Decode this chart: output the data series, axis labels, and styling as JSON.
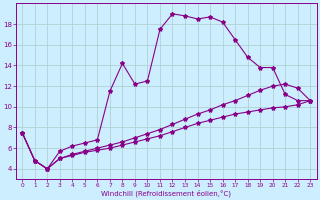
{
  "xlabel": "Windchill (Refroidissement éolien,°C)",
  "background_color": "#cceeff",
  "grid_color": "#aacccc",
  "line_color": "#880088",
  "xlim": [
    -0.5,
    23.5
  ],
  "ylim": [
    3.0,
    20.0
  ],
  "xticks": [
    0,
    1,
    2,
    3,
    4,
    5,
    6,
    7,
    8,
    9,
    10,
    11,
    12,
    13,
    14,
    15,
    16,
    17,
    18,
    19,
    20,
    21,
    22,
    23
  ],
  "yticks": [
    4,
    6,
    8,
    10,
    12,
    14,
    16,
    18
  ],
  "series": [
    {
      "x": [
        0,
        1,
        2,
        3,
        4,
        5,
        6,
        7,
        8,
        9,
        10,
        11,
        12,
        13,
        14,
        15,
        16,
        17,
        18,
        19,
        20,
        21,
        22,
        23
      ],
      "y": [
        7.5,
        4.8,
        4.0,
        5.7,
        6.2,
        6.5,
        6.8,
        11.5,
        14.2,
        12.2,
        12.5,
        17.5,
        19.0,
        18.8,
        18.5,
        18.7,
        18.2,
        16.5,
        14.8,
        13.8,
        13.8,
        11.2,
        10.6,
        10.6
      ]
    },
    {
      "x": [
        0,
        1,
        2,
        3,
        4,
        5,
        6,
        7,
        8,
        9,
        10,
        11,
        12,
        13,
        14,
        15,
        16,
        17,
        18,
        19,
        20,
        21,
        22,
        23
      ],
      "y": [
        7.5,
        4.8,
        4.0,
        5.0,
        5.3,
        5.6,
        5.8,
        6.0,
        6.3,
        6.6,
        6.9,
        7.2,
        7.6,
        8.0,
        8.4,
        8.7,
        9.0,
        9.3,
        9.5,
        9.7,
        9.9,
        10.0,
        10.2,
        10.6
      ]
    },
    {
      "x": [
        0,
        1,
        2,
        3,
        4,
        5,
        6,
        7,
        8,
        9,
        10,
        11,
        12,
        13,
        14,
        15,
        16,
        17,
        18,
        19,
        20,
        21,
        22,
        23
      ],
      "y": [
        7.5,
        4.8,
        4.0,
        5.0,
        5.4,
        5.7,
        6.0,
        6.3,
        6.6,
        7.0,
        7.4,
        7.8,
        8.3,
        8.8,
        9.3,
        9.7,
        10.2,
        10.6,
        11.1,
        11.6,
        12.0,
        12.2,
        11.8,
        10.6
      ]
    }
  ]
}
